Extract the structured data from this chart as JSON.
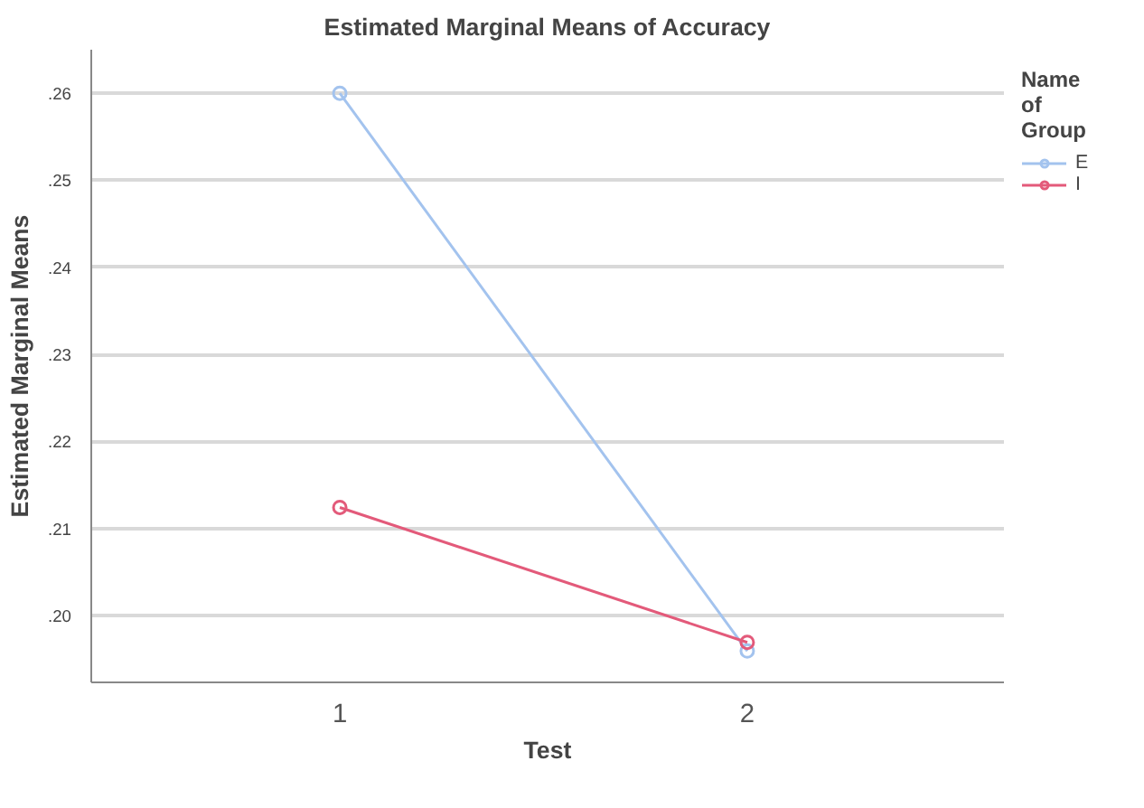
{
  "chart_data": {
    "type": "line",
    "title": "Estimated Marginal Means of Accuracy",
    "xlabel": "Test",
    "ylabel": "Estimated Marginal Means",
    "legend_title": "Name of Group",
    "categories": [
      "1",
      "2"
    ],
    "series": [
      {
        "name": "E",
        "color": "#a3c3ee",
        "values": [
          0.26,
          0.1959
        ]
      },
      {
        "name": "I",
        "color": "#e35a7a",
        "values": [
          0.2124,
          0.1969
        ]
      }
    ],
    "ylim": [
      0.1923,
      0.265
    ],
    "yticks": [
      {
        "value": 0.2,
        "label": ".20"
      },
      {
        "value": 0.21,
        "label": ".21"
      },
      {
        "value": 0.22,
        "label": ".22"
      },
      {
        "value": 0.23,
        "label": ".23"
      },
      {
        "value": 0.24,
        "label": ".24"
      },
      {
        "value": 0.25,
        "label": ".25"
      },
      {
        "value": 0.26,
        "label": ".26"
      }
    ],
    "grid": "y",
    "legend": "right",
    "marker": "circle",
    "line_style": "solid"
  }
}
